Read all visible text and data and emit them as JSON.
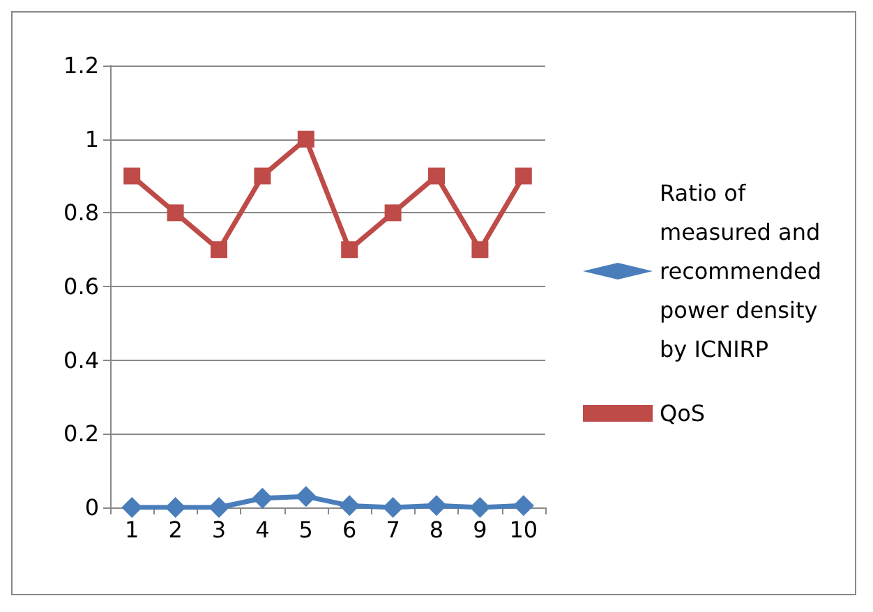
{
  "chart_data": {
    "type": "line",
    "categories": [
      "1",
      "2",
      "3",
      "4",
      "5",
      "6",
      "7",
      "8",
      "9",
      "10"
    ],
    "series": [
      {
        "name": "Ratio of measured and recommended power density by ICNIRP",
        "color": "#4a7ebb",
        "marker": "diamond",
        "values": [
          0,
          0,
          0,
          0.025,
          0.03,
          0.005,
          0,
          0.005,
          0,
          0.005
        ]
      },
      {
        "name": "QoS",
        "color": "#be4b48",
        "marker": "square",
        "values": [
          0.9,
          0.8,
          0.7,
          0.9,
          1,
          0.7,
          0.8,
          0.9,
          0.7,
          0.9
        ]
      }
    ],
    "ylim": [
      0,
      1.2
    ],
    "yticks": [
      0,
      0.2,
      0.4,
      0.6,
      0.8,
      1,
      1.2
    ],
    "grid": "y",
    "legend": "right",
    "line_style": "solid"
  }
}
